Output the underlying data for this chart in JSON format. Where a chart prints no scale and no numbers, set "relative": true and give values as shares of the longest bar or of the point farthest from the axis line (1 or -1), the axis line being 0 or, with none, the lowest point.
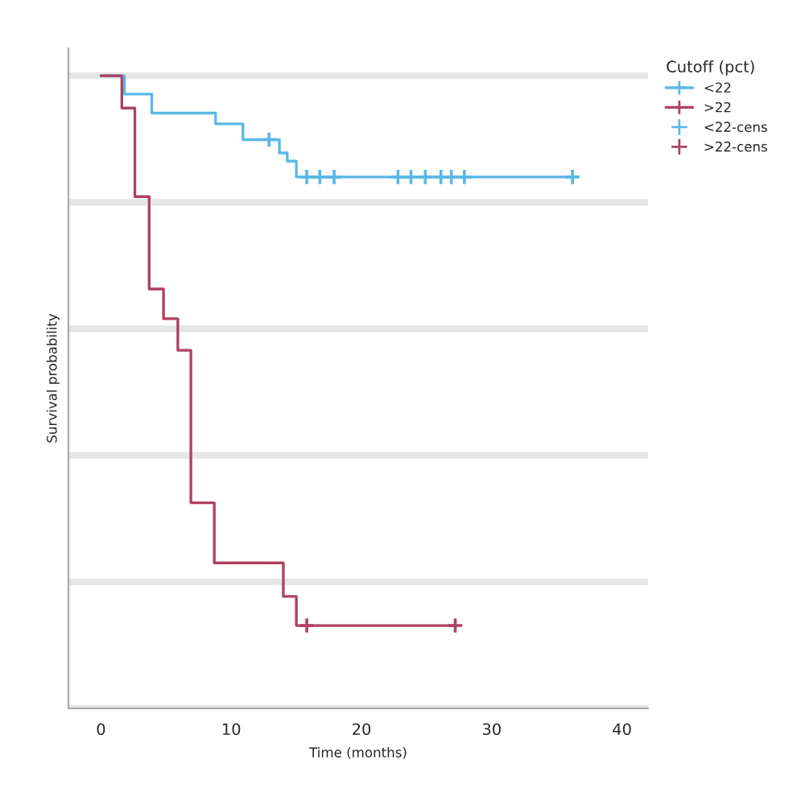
{
  "chart_data": {
    "type": "step",
    "relative": true,
    "xlabel": "Time (months)",
    "ylabel": "Survival probability",
    "legend_title": "Cutoff (pct)",
    "xlim": [
      -2.5,
      42
    ],
    "xticks": [
      0,
      10,
      20,
      30,
      40
    ],
    "grid": "y",
    "legend": "top right",
    "tick_labels": "x",
    "series": [
      {
        "name": "<22",
        "color": "#5bb8e8",
        "x": [
          0,
          1.8,
          3.9,
          8.8,
          10.9,
          13.7,
          14.3,
          15.0,
          36.2
        ],
        "values": [
          1,
          0.971,
          0.941,
          0.924,
          0.899,
          0.878,
          0.865,
          0.84,
          0.84
        ]
      },
      {
        "name": ">22",
        "color": "#b04060",
        "x": [
          0,
          1.6,
          2.6,
          3.7,
          4.8,
          5.9,
          6.9,
          8.7,
          14.0,
          15.0,
          27.2
        ],
        "values": [
          1,
          0.949,
          0.809,
          0.663,
          0.616,
          0.566,
          0.325,
          0.23,
          0.177,
          0.131,
          0.131
        ]
      },
      {
        "name": "<22-cens",
        "type": "scatter",
        "marker": "cross",
        "color": "#5bb8e8",
        "x": [
          12.9,
          15.8,
          16.8,
          17.9,
          22.8,
          23.8,
          24.9,
          26.1,
          26.9,
          27.9,
          36.2
        ],
        "values": [
          0.899,
          0.84,
          0.84,
          0.84,
          0.84,
          0.84,
          0.84,
          0.84,
          0.84,
          0.84,
          0.84
        ]
      },
      {
        "name": ">22-cens",
        "type": "scatter",
        "marker": "cross",
        "color": "#b04060",
        "x": [
          15.8,
          27.2
        ],
        "values": [
          0.131,
          0.131
        ]
      }
    ]
  }
}
